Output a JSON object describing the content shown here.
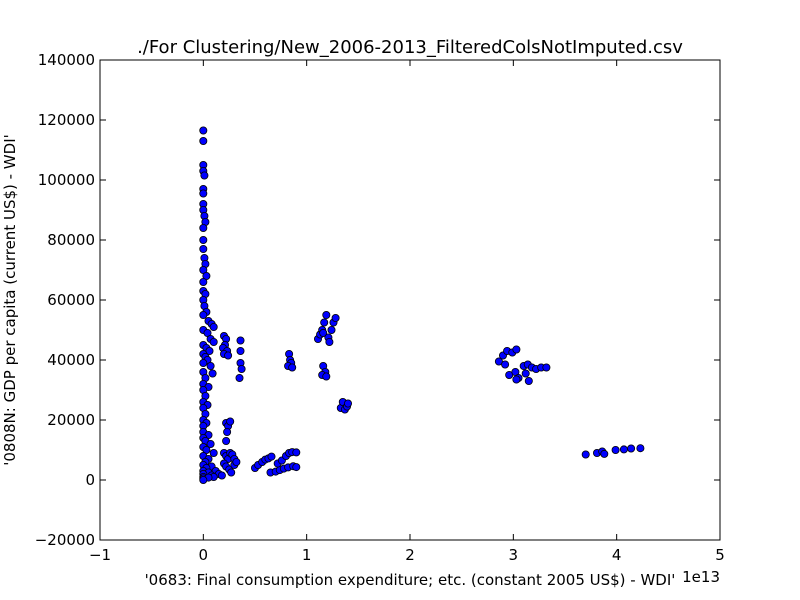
{
  "chart_data": {
    "type": "scatter",
    "title": "./For Clustering/New_2006-2013_FilteredColsNotImputed.csv",
    "xlabel": "'0683: Final consumption expenditure; etc.  (constant 2005 US$) - WDI'",
    "ylabel": "'0808N: GDP per capita  (current US$) - WDI'",
    "x_offset_label": "1e13",
    "x_scale": 10000000000000.0,
    "xlim": [
      -10000000000000.0,
      50000000000000.0
    ],
    "ylim": [
      -20000,
      140000
    ],
    "x_ticks": [
      -10000000000000.0,
      0,
      10000000000000.0,
      20000000000000.0,
      30000000000000.0,
      40000000000000.0,
      50000000000000.0
    ],
    "x_tick_labels": [
      "−1",
      "0",
      "1",
      "2",
      "3",
      "4",
      "5"
    ],
    "y_ticks": [
      -20000,
      0,
      20000,
      40000,
      60000,
      80000,
      100000,
      120000,
      140000
    ],
    "y_tick_labels": [
      "−20000",
      "0",
      "20000",
      "40000",
      "60000",
      "80000",
      "100000",
      "120000",
      "140000"
    ],
    "marker_color": "#0000ff",
    "marker_edge": "#000000",
    "grid": false,
    "points": [
      [
        0,
        116500
      ],
      [
        0,
        113000
      ],
      [
        0,
        105000
      ],
      [
        0,
        103000
      ],
      [
        100000000000.0,
        101500
      ],
      [
        0,
        97000
      ],
      [
        0,
        95500
      ],
      [
        0,
        92000
      ],
      [
        0,
        90000
      ],
      [
        100000000000.0,
        88000
      ],
      [
        200000000000.0,
        86000
      ],
      [
        0,
        84000
      ],
      [
        0,
        80000
      ],
      [
        0,
        77000
      ],
      [
        100000000000.0,
        74000
      ],
      [
        200000000000.0,
        72000
      ],
      [
        0,
        70000
      ],
      [
        300000000000.0,
        68000
      ],
      [
        0,
        66000
      ],
      [
        0,
        63000
      ],
      [
        200000000000.0,
        62000
      ],
      [
        0,
        60000
      ],
      [
        100000000000.0,
        58000
      ],
      [
        300000000000.0,
        56000
      ],
      [
        0,
        55000
      ],
      [
        500000000000.0,
        53000
      ],
      [
        800000000000.0,
        52000
      ],
      [
        1000000000000.0,
        51000
      ],
      [
        0,
        50000
      ],
      [
        400000000000.0,
        49000
      ],
      [
        700000000000.0,
        47000
      ],
      [
        1000000000000.0,
        46000
      ],
      [
        0,
        45000
      ],
      [
        300000000000.0,
        44000
      ],
      [
        600000000000.0,
        43000
      ],
      [
        0,
        42000
      ],
      [
        200000000000.0,
        41000
      ],
      [
        400000000000.0,
        40000
      ],
      [
        0,
        39000
      ],
      [
        700000000000.0,
        38000
      ],
      [
        0,
        36000
      ],
      [
        900000000000.0,
        35500
      ],
      [
        200000000000.0,
        34000
      ],
      [
        0,
        32000
      ],
      [
        500000000000.0,
        31000
      ],
      [
        0,
        30000
      ],
      [
        200000000000.0,
        28000
      ],
      [
        0,
        26000
      ],
      [
        400000000000.0,
        25000
      ],
      [
        0,
        24000
      ],
      [
        200000000000.0,
        22000
      ],
      [
        0,
        20000
      ],
      [
        300000000000.0,
        19000
      ],
      [
        0,
        18000
      ],
      [
        0,
        16000
      ],
      [
        500000000000.0,
        15000
      ],
      [
        0,
        14000
      ],
      [
        200000000000.0,
        13000
      ],
      [
        700000000000.0,
        12000
      ],
      [
        0,
        11000
      ],
      [
        300000000000.0,
        10000
      ],
      [
        1000000000000.0,
        9000
      ],
      [
        0,
        8000
      ],
      [
        500000000000.0,
        7000
      ],
      [
        200000000000.0,
        6000
      ],
      [
        0,
        5000
      ],
      [
        800000000000.0,
        4500
      ],
      [
        300000000000.0,
        4000
      ],
      [
        0,
        3000
      ],
      [
        1200000000000.0,
        3000
      ],
      [
        500000000000.0,
        2500
      ],
      [
        0,
        2000
      ],
      [
        1500000000000.0,
        2000
      ],
      [
        800000000000.0,
        1500
      ],
      [
        0,
        1000
      ],
      [
        1800000000000.0,
        1500
      ],
      [
        1000000000000.0,
        1000
      ],
      [
        0,
        500
      ],
      [
        500000000000.0,
        800
      ],
      [
        0,
        0
      ],
      [
        2000000000000.0,
        48000
      ],
      [
        2200000000000.0,
        47000
      ],
      [
        2100000000000.0,
        45000
      ],
      [
        1900000000000.0,
        44000
      ],
      [
        2300000000000.0,
        43000
      ],
      [
        2000000000000.0,
        42000
      ],
      [
        2400000000000.0,
        41500
      ],
      [
        3600000000000.0,
        46500
      ],
      [
        3600000000000.0,
        43000
      ],
      [
        3600000000000.0,
        39000
      ],
      [
        3700000000000.0,
        37000
      ],
      [
        3500000000000.0,
        34000
      ],
      [
        2200000000000.0,
        19000
      ],
      [
        2400000000000.0,
        18000
      ],
      [
        2600000000000.0,
        19500
      ],
      [
        2300000000000.0,
        16000
      ],
      [
        2200000000000.0,
        13000
      ],
      [
        2000000000000.0,
        9000
      ],
      [
        2200000000000.0,
        8000
      ],
      [
        2400000000000.0,
        7000
      ],
      [
        2600000000000.0,
        9000
      ],
      [
        2800000000000.0,
        8500
      ],
      [
        3000000000000.0,
        7000
      ],
      [
        2000000000000.0,
        5500
      ],
      [
        2200000000000.0,
        4500
      ],
      [
        2500000000000.0,
        3500
      ],
      [
        2700000000000.0,
        2500
      ],
      [
        3000000000000.0,
        5000
      ],
      [
        3200000000000.0,
        6000
      ],
      [
        5000000000000.0,
        4000
      ],
      [
        5300000000000.0,
        5000
      ],
      [
        5700000000000.0,
        6000
      ],
      [
        6000000000000.0,
        6800
      ],
      [
        6300000000000.0,
        7200
      ],
      [
        6600000000000.0,
        7800
      ],
      [
        6500000000000.0,
        2500
      ],
      [
        7000000000000.0,
        2800
      ],
      [
        7400000000000.0,
        3300
      ],
      [
        7800000000000.0,
        3800
      ],
      [
        8200000000000.0,
        4200
      ],
      [
        8700000000000.0,
        4600
      ],
      [
        9000000000000.0,
        4300
      ],
      [
        7200000000000.0,
        5500
      ],
      [
        7600000000000.0,
        6500
      ],
      [
        8000000000000.0,
        8000
      ],
      [
        8300000000000.0,
        9000
      ],
      [
        8600000000000.0,
        9300
      ],
      [
        9000000000000.0,
        9200
      ],
      [
        8300000000000.0,
        42000
      ],
      [
        8400000000000.0,
        40000
      ],
      [
        8500000000000.0,
        39000
      ],
      [
        8200000000000.0,
        38000
      ],
      [
        8600000000000.0,
        37500
      ],
      [
        11100000000000.0,
        47000
      ],
      [
        11300000000000.0,
        48500
      ],
      [
        11500000000000.0,
        50000
      ],
      [
        11700000000000.0,
        52500
      ],
      [
        11900000000000.0,
        55000
      ],
      [
        11600000000000.0,
        49000
      ],
      [
        12100000000000.0,
        47500
      ],
      [
        12200000000000.0,
        46000
      ],
      [
        12400000000000.0,
        50000
      ],
      [
        12600000000000.0,
        52500
      ],
      [
        12800000000000.0,
        54000
      ],
      [
        11600000000000.0,
        38000
      ],
      [
        11800000000000.0,
        36000
      ],
      [
        11500000000000.0,
        35000
      ],
      [
        11900000000000.0,
        34500
      ],
      [
        13300000000000.0,
        24000
      ],
      [
        13500000000000.0,
        26000
      ],
      [
        13700000000000.0,
        23500
      ],
      [
        13900000000000.0,
        24500
      ],
      [
        14000000000000.0,
        25500
      ],
      [
        28600000000000.0,
        39500
      ],
      [
        29000000000000.0,
        41500
      ],
      [
        29400000000000.0,
        43000
      ],
      [
        29900000000000.0,
        42500
      ],
      [
        30300000000000.0,
        43500
      ],
      [
        29200000000000.0,
        38500
      ],
      [
        29600000000000.0,
        35000
      ],
      [
        30200000000000.0,
        36000
      ],
      [
        30500000000000.0,
        34000
      ],
      [
        30300000000000.0,
        33500
      ],
      [
        31000000000000.0,
        38000
      ],
      [
        31400000000000.0,
        38500
      ],
      [
        31800000000000.0,
        37500
      ],
      [
        32200000000000.0,
        37000
      ],
      [
        32700000000000.0,
        37500
      ],
      [
        33200000000000.0,
        37500
      ],
      [
        31200000000000.0,
        35500
      ],
      [
        31500000000000.0,
        33000
      ],
      [
        37000000000000.0,
        8500
      ],
      [
        38100000000000.0,
        9000
      ],
      [
        38600000000000.0,
        9500
      ],
      [
        38800000000000.0,
        8700
      ],
      [
        39900000000000.0,
        10000
      ],
      [
        40700000000000.0,
        10200
      ],
      [
        41400000000000.0,
        10500
      ],
      [
        42300000000000.0,
        10600
      ]
    ]
  }
}
